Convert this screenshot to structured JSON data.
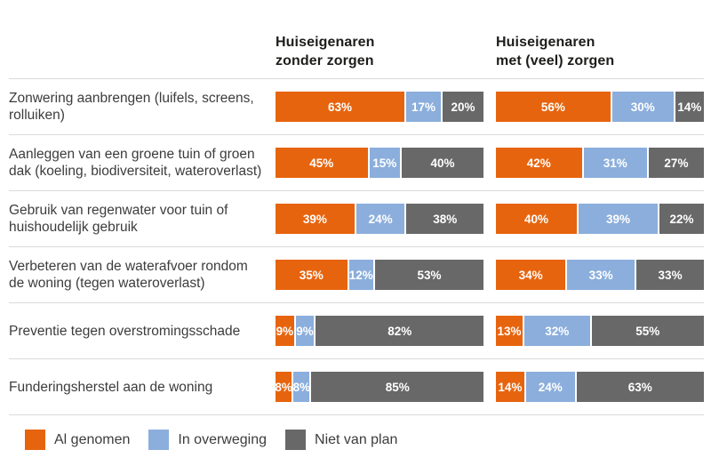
{
  "chart_data": {
    "type": "bar",
    "variant": "horizontal-stacked-grouped",
    "unit": "%",
    "axis_range": [
      0,
      100
    ],
    "data_labels": true,
    "grid": false,
    "legend_position": "bottom-left",
    "group_headers": [
      {
        "line1": "Huiseigenaren",
        "line2": "zonder zorgen"
      },
      {
        "line1": "Huiseigenaren",
        "line2": "met (veel) zorgen"
      }
    ],
    "series_names": [
      "Al genomen",
      "In overweging",
      "Niet van plan"
    ],
    "legend": [
      {
        "label": "Al genomen",
        "color": "#e7640e"
      },
      {
        "label": "In overweging",
        "color": "#8baedc"
      },
      {
        "label": "Niet van plan",
        "color": "#686868"
      }
    ],
    "categories": [
      "Zonwering aanbrengen (luifels, screens, rolluiken)",
      "Aanleggen van een groene tuin of groen dak (koeling, biodiversiteit, wateroverlast)",
      "Gebruik van regenwater voor tuin of huishoudelijk gebruik",
      "Verbeteren van de waterafvoer rondom de woning (tegen wateroverlast)",
      "Preventie tegen overstromingsschade",
      "Funderingsherstel aan de woning"
    ],
    "rows": [
      {
        "label": "Zonwering aanbrengen (luifels, screens, rolluiken)",
        "zonder_zorgen": [
          63,
          17,
          20
        ],
        "met_veel_zorgen": [
          56,
          30,
          14
        ]
      },
      {
        "label": "Aanleggen van een groene tuin of groen dak (koeling, biodiversiteit, wateroverlast)",
        "zonder_zorgen": [
          45,
          15,
          40
        ],
        "met_veel_zorgen": [
          42,
          31,
          27
        ]
      },
      {
        "label": "Gebruik van regenwater voor tuin of huishoudelijk gebruik",
        "zonder_zorgen": [
          39,
          24,
          38
        ],
        "met_veel_zorgen": [
          40,
          39,
          22
        ]
      },
      {
        "label": "Verbeteren van de waterafvoer rondom de woning (tegen wateroverlast)",
        "zonder_zorgen": [
          35,
          12,
          53
        ],
        "met_veel_zorgen": [
          34,
          33,
          33
        ]
      },
      {
        "label": "Preventie tegen overstromingsschade",
        "zonder_zorgen": [
          9,
          9,
          82
        ],
        "met_veel_zorgen": [
          13,
          32,
          55
        ]
      },
      {
        "label": "Funderingsherstel aan de woning",
        "zonder_zorgen": [
          8,
          8,
          85
        ],
        "met_veel_zorgen": [
          14,
          24,
          63
        ]
      }
    ]
  }
}
